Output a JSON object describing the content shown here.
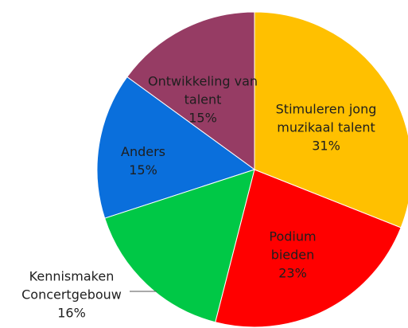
{
  "chart_data": {
    "type": "pie",
    "categories": [
      "Stimuleren jong muzikaal talent",
      "Podium bieden",
      "Kennismaken Concertgebouw",
      "Anders",
      "Ontwikkeling van talent"
    ],
    "values": [
      31,
      23,
      16,
      15,
      15
    ],
    "value_labels": [
      "31%",
      "23%",
      "16%",
      "15%",
      "15%"
    ],
    "colors": [
      "#ffc000",
      "#ff0000",
      "#00c846",
      "#0a6fdc",
      "#963c64"
    ]
  }
}
